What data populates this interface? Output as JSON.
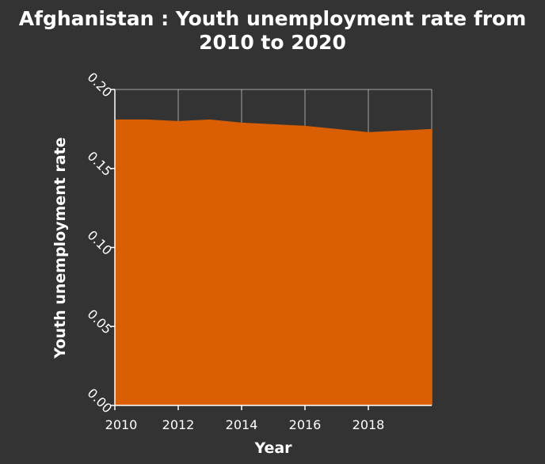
{
  "chart_data": {
    "type": "area",
    "title": "Afghanistan : Youth unemployment rate from 2010 to 2020",
    "title_lines": [
      "Afghanistan : Youth unemployment rate from",
      "2010 to 2020"
    ],
    "xlabel": "Year",
    "ylabel": "Youth unemployment rate",
    "xlim": [
      2010,
      2020
    ],
    "ylim": [
      0,
      0.2
    ],
    "xticks": [
      "2010",
      "2012",
      "2014",
      "2016",
      "2018"
    ],
    "yticks": [
      "0.00",
      "0.05",
      "0.10",
      "0.15",
      "0.20"
    ],
    "x": [
      2010,
      2011,
      2012,
      2013,
      2014,
      2015,
      2016,
      2017,
      2018,
      2019,
      2020
    ],
    "y": [
      0.181,
      0.181,
      0.18,
      0.181,
      0.179,
      0.178,
      0.177,
      0.175,
      0.173,
      0.174,
      0.175
    ],
    "grid": true,
    "fill_color": "#d95f02",
    "background_color": "#333333"
  }
}
